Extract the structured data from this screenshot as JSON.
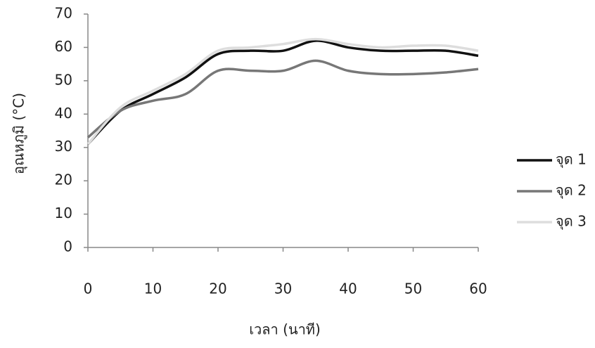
{
  "chart_data": {
    "type": "line",
    "x_label": "เวลา (นาที)",
    "y_label": "อุณหภูมิ (°C)",
    "x": [
      0,
      5,
      10,
      15,
      20,
      25,
      30,
      35,
      40,
      45,
      50,
      55,
      60
    ],
    "series": [
      {
        "name": "จุด 1",
        "color": "#111111",
        "values": [
          31,
          41,
          46,
          51,
          58,
          59,
          59,
          62,
          60,
          59,
          59,
          59,
          57.5
        ]
      },
      {
        "name": "จุด 2",
        "color": "#777777",
        "values": [
          33,
          41,
          44,
          46,
          53,
          53,
          53,
          56,
          53,
          52,
          52,
          52.5,
          53.5
        ]
      },
      {
        "name": "จุด 3",
        "color": "#dddddd",
        "values": [
          31,
          42,
          47,
          52,
          59,
          60,
          61,
          62.5,
          61,
          60,
          60.5,
          60.5,
          59
        ]
      }
    ],
    "xlim": [
      0,
      60
    ],
    "xticks": [
      0,
      10,
      20,
      30,
      40,
      50,
      60
    ],
    "ylim": [
      0,
      70
    ],
    "yticks": [
      0,
      10,
      20,
      30,
      40,
      50,
      60,
      70
    ],
    "legend": "right"
  }
}
